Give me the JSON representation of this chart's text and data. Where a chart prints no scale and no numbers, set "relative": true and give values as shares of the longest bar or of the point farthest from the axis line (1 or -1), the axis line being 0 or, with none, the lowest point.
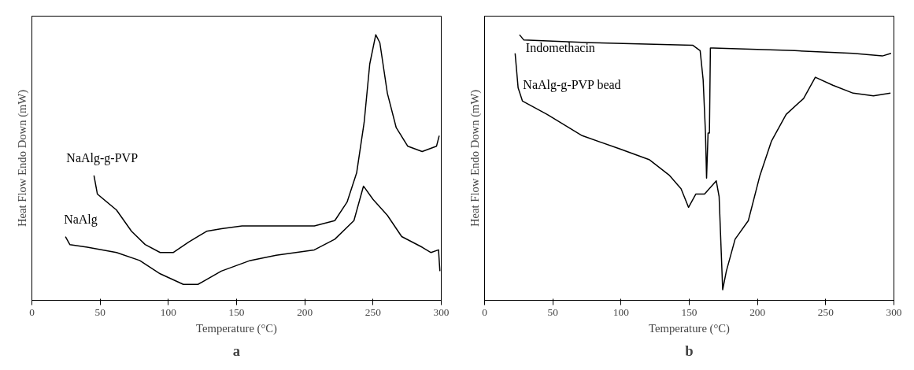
{
  "chart_data": [
    {
      "type": "line",
      "title": "a",
      "xlabel": "Temperature (°C)",
      "ylabel": "Heat Flow Endo Down (mW)",
      "relative": true,
      "xlim": [
        0,
        300
      ],
      "xticks": [
        0,
        50,
        100,
        150,
        200,
        250,
        300
      ],
      "grid": false,
      "legend": false,
      "series": [
        {
          "name": "NaAlg-g-PVP",
          "color": "#000000",
          "x": [
            45.5,
            48,
            62,
            73,
            83,
            94,
            103.5,
            115,
            128,
            139,
            154,
            179,
            207,
            222,
            231,
            238,
            243.5,
            247.6,
            252,
            255,
            260.5,
            267,
            275.5,
            286,
            296.5,
            298.5
          ],
          "values": [
            0.47,
            0.4,
            0.34,
            0.26,
            0.21,
            0.18,
            0.18,
            0.22,
            0.26,
            0.27,
            0.28,
            0.28,
            0.28,
            0.3,
            0.37,
            0.48,
            0.67,
            0.89,
            1.0,
            0.97,
            0.78,
            0.65,
            0.58,
            0.56,
            0.58,
            0.62
          ]
        },
        {
          "name": "NaAlg",
          "color": "#000000",
          "x": [
            24.6,
            27.8,
            40.6,
            62,
            79,
            94,
            111,
            121.7,
            138.8,
            160,
            179,
            207,
            222,
            236,
            243,
            250,
            260.5,
            271,
            286,
            292.5,
            298,
            299
          ],
          "values": [
            0.24,
            0.21,
            0.2,
            0.18,
            0.15,
            0.1,
            0.06,
            0.06,
            0.11,
            0.15,
            0.17,
            0.19,
            0.23,
            0.3,
            0.43,
            0.38,
            0.32,
            0.24,
            0.2,
            0.18,
            0.19,
            0.11
          ]
        }
      ]
    },
    {
      "type": "line",
      "title": "b",
      "xlabel": "Temperature (°C)",
      "ylabel": "Heat Flow Endo Down (mW)",
      "relative": true,
      "xlim": [
        0,
        300
      ],
      "xticks": [
        0,
        50,
        100,
        150,
        200,
        250,
        300
      ],
      "grid": false,
      "legend": false,
      "series": [
        {
          "name": "Indomethacin",
          "color": "#000000",
          "x": [
            25.6,
            28.8,
            78,
            152.7,
            158,
            160.2,
            161.9,
            162.7,
            163.8,
            164.8,
            165.5,
            167.6,
            227.4,
            270,
            291.5,
            297.9
          ],
          "values": [
            1.0,
            0.98,
            0.97,
            0.96,
            0.94,
            0.83,
            0.63,
            0.46,
            0.63,
            0.63,
            0.95,
            0.95,
            0.94,
            0.93,
            0.92,
            0.93
          ]
        },
        {
          "name": "NaAlg-g-PVP bead",
          "color": "#000000",
          "x": [
            22.4,
            24.6,
            27.8,
            45.9,
            71.5,
            99.3,
            120.6,
            135.6,
            144,
            149.5,
            154.8,
            161.2,
            169.8,
            171.9,
            174.5,
            177.2,
            183.6,
            193.3,
            201.8,
            210.3,
            221,
            233.8,
            242.4,
            255.2,
            270.1,
            285,
            297.5
          ],
          "values": [
            0.93,
            0.8,
            0.75,
            0.7,
            0.62,
            0.57,
            0.53,
            0.47,
            0.42,
            0.35,
            0.4,
            0.4,
            0.45,
            0.39,
            0.04,
            0.11,
            0.23,
            0.3,
            0.47,
            0.6,
            0.7,
            0.76,
            0.84,
            0.81,
            0.78,
            0.77,
            0.78
          ]
        }
      ]
    }
  ]
}
